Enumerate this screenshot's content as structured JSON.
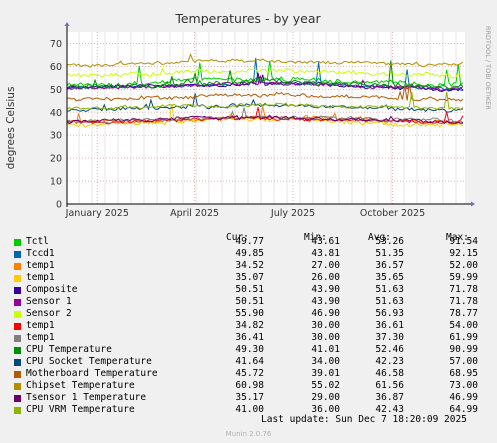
{
  "chart_data": {
    "type": "line",
    "title": "Temperatures - by year",
    "ylabel": "degrees Celsius",
    "side_label": "RRDTOOL / TOBI OETIKER",
    "ylim": [
      0,
      75
    ],
    "y_ticks": [
      0,
      10,
      20,
      30,
      40,
      50,
      60,
      70
    ],
    "x_ticks": [
      {
        "label": "January 2025",
        "date": "2025-01-01"
      },
      {
        "label": "April 2025",
        "date": "2025-04-01"
      },
      {
        "label": "July 2025",
        "date": "2025-07-01"
      },
      {
        "label": "October 2025",
        "date": "2025-10-01"
      }
    ],
    "x_range": [
      "2024-12-04",
      "2025-12-07"
    ],
    "grid": true,
    "series": [
      {
        "name": "Tctl",
        "color": "#00cc00",
        "level": 53.26,
        "min": 43.61,
        "max": 91.54
      },
      {
        "name": "Tccd1",
        "color": "#0066b3",
        "level": 51.35,
        "min": 43.81,
        "max": 92.15
      },
      {
        "name": "temp1",
        "color": "#ff8000",
        "level": 36.57,
        "min": 27.0,
        "max": 52.0
      },
      {
        "name": "temp1",
        "color": "#ffcc00",
        "level": 35.65,
        "min": 26.0,
        "max": 59.99
      },
      {
        "name": "Composite",
        "color": "#330099",
        "level": 51.63,
        "min": 43.9,
        "max": 71.78
      },
      {
        "name": "Sensor 1",
        "color": "#990099",
        "level": 51.63,
        "min": 43.9,
        "max": 71.78
      },
      {
        "name": "Sensor 2",
        "color": "#ccff00",
        "level": 56.93,
        "min": 46.9,
        "max": 78.77
      },
      {
        "name": "temp1",
        "color": "#ff0000",
        "level": 36.61,
        "min": 30.0,
        "max": 54.0
      },
      {
        "name": "temp1",
        "color": "#808080",
        "level": 37.3,
        "min": 30.0,
        "max": 61.99
      },
      {
        "name": "CPU Temperature",
        "color": "#008f00",
        "level": 52.46,
        "min": 41.01,
        "max": 90.99
      },
      {
        "name": "CPU Socket Temperature",
        "color": "#00487d",
        "level": 42.23,
        "min": 34.0,
        "max": 57.0
      },
      {
        "name": "Motherboard Temperature",
        "color": "#b35a00",
        "level": 46.58,
        "min": 39.01,
        "max": 68.95
      },
      {
        "name": "Chipset Temperature",
        "color": "#b38f00",
        "level": 61.56,
        "min": 55.02,
        "max": 73.0
      },
      {
        "name": "Tsensor 1 Temperature",
        "color": "#6b006b",
        "level": 36.87,
        "min": 29.0,
        "max": 46.99
      },
      {
        "name": "CPU VRM Temperature",
        "color": "#8fb300",
        "level": 42.43,
        "min": 36.0,
        "max": 64.99
      }
    ]
  },
  "legend": {
    "headers": {
      "cur": "Cur:",
      "min": "Min:",
      "avg": "Avg:",
      "max": "Max:"
    },
    "rows": [
      {
        "name": "Tctl",
        "cur": "49.77",
        "min": "43.61",
        "avg": "53.26",
        "max": "91.54"
      },
      {
        "name": "Tccd1",
        "cur": "49.85",
        "min": "43.81",
        "avg": "51.35",
        "max": "92.15"
      },
      {
        "name": "temp1",
        "cur": "34.52",
        "min": "27.00",
        "avg": "36.57",
        "max": "52.00"
      },
      {
        "name": "temp1",
        "cur": "35.07",
        "min": "26.00",
        "avg": "35.65",
        "max": "59.99"
      },
      {
        "name": "Composite",
        "cur": "50.51",
        "min": "43.90",
        "avg": "51.63",
        "max": "71.78"
      },
      {
        "name": "Sensor 1",
        "cur": "50.51",
        "min": "43.90",
        "avg": "51.63",
        "max": "71.78"
      },
      {
        "name": "Sensor 2",
        "cur": "55.90",
        "min": "46.90",
        "avg": "56.93",
        "max": "78.77"
      },
      {
        "name": "temp1",
        "cur": "34.82",
        "min": "30.00",
        "avg": "36.61",
        "max": "54.00"
      },
      {
        "name": "temp1",
        "cur": "36.41",
        "min": "30.00",
        "avg": "37.30",
        "max": "61.99"
      },
      {
        "name": "CPU Temperature",
        "cur": "49.30",
        "min": "41.01",
        "avg": "52.46",
        "max": "90.99"
      },
      {
        "name": "CPU Socket Temperature",
        "cur": "41.64",
        "min": "34.00",
        "avg": "42.23",
        "max": "57.00"
      },
      {
        "name": "Motherboard Temperature",
        "cur": "45.72",
        "min": "39.01",
        "avg": "46.58",
        "max": "68.95"
      },
      {
        "name": "Chipset Temperature",
        "cur": "60.98",
        "min": "55.02",
        "avg": "61.56",
        "max": "73.00"
      },
      {
        "name": "Tsensor 1 Temperature",
        "cur": "35.17",
        "min": "29.00",
        "avg": "36.87",
        "max": "46.99"
      },
      {
        "name": "CPU VRM Temperature",
        "cur": "41.00",
        "min": "36.00",
        "avg": "42.43",
        "max": "64.99"
      }
    ]
  },
  "footer": {
    "last_update": "Last update: Sun Dec  7 18:20:09 2025",
    "brand": "Munin 2.0.76"
  }
}
